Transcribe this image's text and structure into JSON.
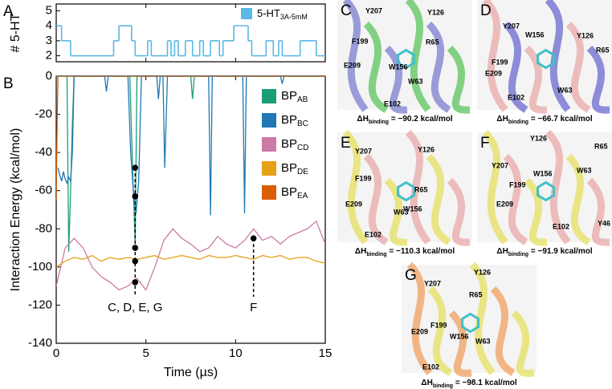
{
  "chart_data": [
    {
      "type": "step",
      "panel": "A",
      "ylabel": "# 5-HT",
      "xlim": [
        0,
        15
      ],
      "xticks": [
        0,
        5,
        10,
        15
      ],
      "ylim": [
        1.6,
        5.45
      ],
      "yticks": [
        2,
        3,
        4,
        5
      ],
      "legend": "upper right",
      "series": [
        {
          "name": "5-HT",
          "subscript": "3A-5mM",
          "color": "#5bb8e6",
          "x": [
            0,
            0.3,
            0.8,
            3.2,
            3.5,
            4.2,
            4.4,
            5.1,
            5.3,
            6.2,
            6.4,
            6.6,
            6.8,
            7.2,
            7.6,
            8.0,
            8.2,
            8.6,
            9.1,
            9.3,
            9.6,
            9.9,
            10.7,
            10.9,
            11.4,
            11.7,
            12.1,
            12.4,
            12.6,
            13.6,
            14.5,
            15
          ],
          "values": [
            4,
            3,
            2,
            3,
            4,
            3,
            2,
            3,
            2,
            3,
            2,
            3,
            2,
            3,
            2,
            3,
            2,
            3,
            2,
            3,
            3,
            4,
            3,
            2,
            2,
            3,
            2,
            3,
            2,
            3,
            2,
            2
          ]
        }
      ]
    },
    {
      "type": "line",
      "panel": "B",
      "xlabel": "Time (µs)",
      "ylabel": "Interaction Energy (kcal/mol)",
      "xlim": [
        0,
        15
      ],
      "xticks": [
        0,
        5,
        10,
        15
      ],
      "ylim": [
        -140,
        0
      ],
      "yticks": [
        {
          "value": -140,
          "label": "-140"
        },
        {
          "value": -120,
          "label": "-120"
        },
        {
          "value": -100,
          "label": "-100"
        },
        {
          "value": -80,
          "label": "-80"
        },
        {
          "value": -60,
          "label": "-60"
        },
        {
          "value": -40,
          "label": "-40"
        },
        {
          "value": -20,
          "label": "-20"
        },
        0
      ],
      "legend": "upper right",
      "series": [
        {
          "name": "BP",
          "subscript": "AB",
          "color": "#1b9e77",
          "x": [
            0,
            0.6,
            0.7,
            0.8,
            0.9,
            1.0,
            4.1,
            4.2,
            4.3,
            4.4,
            4.5,
            7.5,
            7.6,
            7.7,
            15
          ],
          "values": [
            0,
            0,
            -92,
            -60,
            -25,
            0,
            0,
            -30,
            -60,
            -88,
            0,
            0,
            -12,
            0,
            0
          ]
        },
        {
          "name": "BP",
          "subscript": "BC",
          "color": "#1f78b4",
          "x": [
            0.1,
            0.2,
            0.3,
            0.4,
            0.5,
            0.6,
            0.7,
            0.8,
            0.9,
            1.0,
            2.7,
            2.8,
            2.9,
            4.0,
            4.15,
            4.3,
            4.45,
            4.6,
            4.75,
            5.6,
            5.7,
            5.8,
            5.95,
            6.05,
            6.2,
            8.5,
            8.6,
            8.7,
            10.4,
            10.5,
            10.6,
            12.5,
            12.6,
            12.7,
            15
          ],
          "values": [
            -48,
            -52,
            -55,
            -50,
            -54,
            -56,
            -53,
            -55,
            -40,
            0,
            0,
            -8,
            0,
            0,
            -40,
            -60,
            -72,
            -55,
            0,
            0,
            -12,
            0,
            0,
            -48,
            0,
            0,
            -73,
            0,
            0,
            -72,
            0,
            0,
            -4,
            0,
            0
          ]
        },
        {
          "name": "BP",
          "subscript": "CD",
          "color": "#cc79a7",
          "x": [
            0,
            0.5,
            1,
            1.5,
            2,
            2.5,
            3,
            3.5,
            4,
            4.5,
            5,
            5.5,
            6,
            6.5,
            7,
            7.5,
            8,
            8.5,
            9,
            9.5,
            10,
            10.5,
            11,
            11.5,
            12,
            12.5,
            13,
            13.5,
            14,
            14.5,
            15
          ],
          "values": [
            -110,
            -90,
            -85,
            -90,
            -100,
            -105,
            -108,
            -112,
            -110,
            -106,
            -112,
            -100,
            -86,
            -80,
            -85,
            -88,
            -92,
            -90,
            -84,
            -88,
            -90,
            -86,
            -80,
            -86,
            -84,
            -88,
            -84,
            -82,
            -80,
            -76,
            -88
          ]
        },
        {
          "name": "BP",
          "subscript": "DE",
          "color": "#e6a117",
          "x": [
            0,
            0.5,
            1,
            1.5,
            2,
            2.5,
            3,
            3.5,
            4,
            4.5,
            5,
            5.5,
            6,
            6.5,
            7,
            7.5,
            8,
            8.5,
            9,
            9.5,
            10,
            10.5,
            11,
            11.5,
            12,
            12.5,
            13,
            13.5,
            14,
            14.5,
            15
          ],
          "values": [
            -100,
            -97,
            -95,
            -96,
            -94,
            -97,
            -95,
            -96,
            -95,
            -96,
            -95,
            -94,
            -96,
            -95,
            -94,
            -95,
            -96,
            -94,
            -95,
            -95,
            -94,
            -95,
            -96,
            -94,
            -95,
            -94,
            -96,
            -95,
            -95,
            -97,
            -98
          ]
        },
        {
          "name": "BP",
          "subscript": "EA",
          "color": "#d95f02",
          "x": [
            0,
            0.03,
            0.06,
            0.1,
            15
          ],
          "values": [
            -65,
            -40,
            -20,
            0,
            0
          ]
        }
      ],
      "markers": {
        "x": [
          4.4,
          4.4,
          4.4,
          4.4,
          4.4,
          11.0
        ],
        "values": [
          -48,
          -63,
          -90,
          -97,
          -108,
          -85
        ]
      },
      "annotations": [
        {
          "text": "C, D, E, G",
          "x": 4.4
        },
        {
          "text": "F",
          "x": 11.0
        }
      ]
    }
  ],
  "panels": [
    {
      "label": "C",
      "residues": [
        "Y207",
        "Y126",
        "F199",
        "R65",
        "E209",
        "W156",
        "W63",
        "E102"
      ],
      "dh": "ΔH",
      "dh_sub": "binding",
      "dh_text": " = −90.2 kcal/mol"
    },
    {
      "label": "D",
      "residues": [
        "Y207",
        "W156",
        "Y126",
        "R65",
        "F199",
        "E209",
        "E102",
        "W63"
      ],
      "dh": "ΔH",
      "dh_sub": "binding",
      "dh_text": " = −66.7 kcal/mol"
    },
    {
      "label": "E",
      "residues": [
        "Y207",
        "Y126",
        "R65",
        "F199",
        "W156",
        "E209",
        "W63",
        "E102"
      ],
      "dh": "ΔH",
      "dh_sub": "binding",
      "dh_text": " = −110.3 kcal/mol"
    },
    {
      "label": "F",
      "residues": [
        "Y126",
        "R65",
        "Y207",
        "W156",
        "W63",
        "F199",
        "E209",
        "Y46",
        "E102"
      ],
      "dh": "ΔH",
      "dh_sub": "binding",
      "dh_text": " = −91.9 kcal/mol"
    },
    {
      "label": "G",
      "residues": [
        "Y207",
        "Y126",
        "R65",
        "F199",
        "E209",
        "W156",
        "W63",
        "E102"
      ],
      "dh": "ΔH",
      "dh_sub": "binding",
      "dh_text": " = −98.1 kcal/mol"
    }
  ]
}
